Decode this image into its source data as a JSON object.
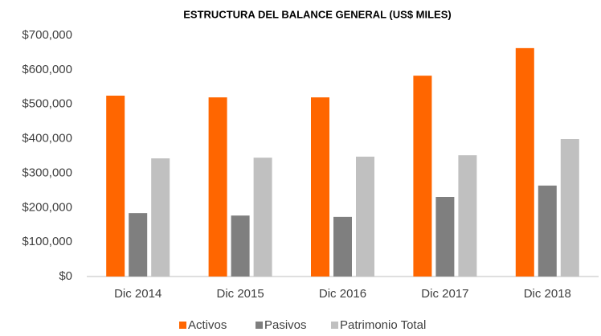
{
  "chart_data": {
    "type": "bar",
    "title": "ESTRUCTURA DEL BALANCE GENERAL (US$ MILES)",
    "categories": [
      "Dic 2014",
      "Dic 2015",
      "Dic 2016",
      "Dic 2017",
      "Dic 2018"
    ],
    "series": [
      {
        "name": "Activos",
        "color": "#ff6600",
        "values": [
          525000,
          520000,
          520000,
          583000,
          663000
        ]
      },
      {
        "name": "Pasivos",
        "color": "#7f7f7f",
        "values": [
          184000,
          177000,
          173000,
          231000,
          264000
        ]
      },
      {
        "name": "Patrimonio Total",
        "color": "#c0c0c0",
        "values": [
          343000,
          345000,
          348000,
          352000,
          399000
        ]
      }
    ],
    "ylim": [
      0,
      700000
    ],
    "yticks": [
      {
        "value": 0,
        "label": "$0"
      },
      {
        "value": 100000,
        "label": "$100,000"
      },
      {
        "value": 200000,
        "label": "$200,000"
      },
      {
        "value": 300000,
        "label": "$300,000"
      },
      {
        "value": 400000,
        "label": "$400,000"
      },
      {
        "value": 500000,
        "label": "$500,000"
      },
      {
        "value": 600000,
        "label": "$600,000"
      },
      {
        "value": 700000,
        "label": "$700,000"
      }
    ],
    "grid": false,
    "legend": "bottom"
  }
}
